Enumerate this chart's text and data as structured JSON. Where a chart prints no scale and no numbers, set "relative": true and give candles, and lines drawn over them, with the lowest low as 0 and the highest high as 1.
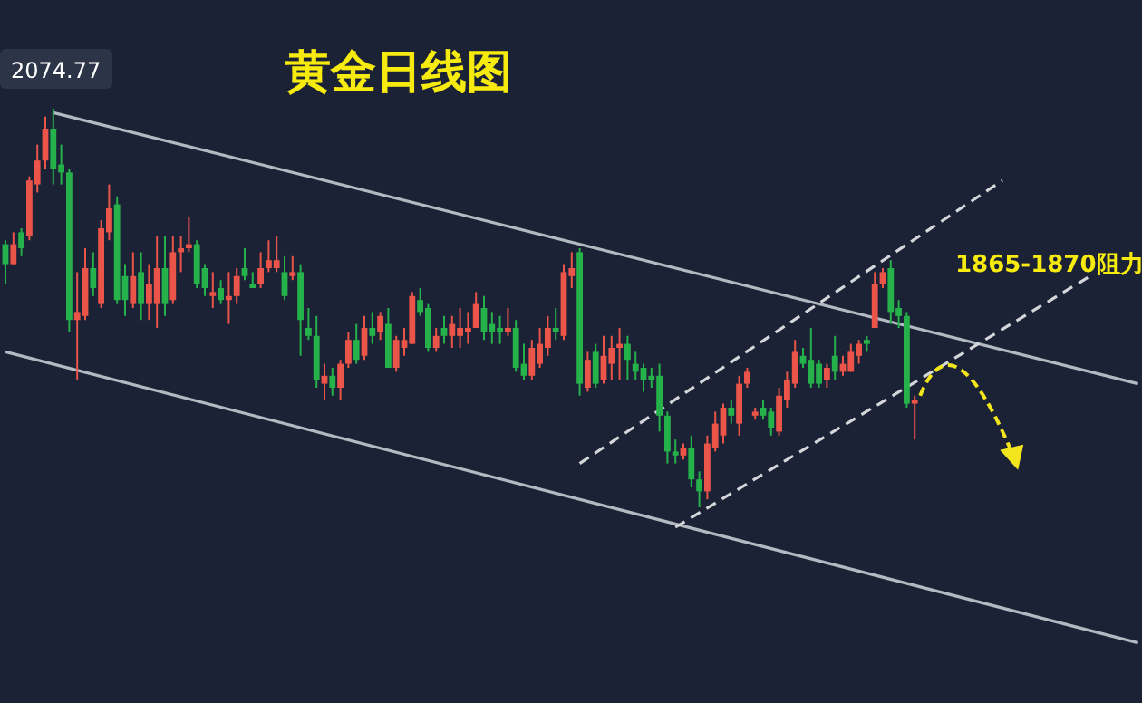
{
  "chart_data": {
    "type": "candlestick",
    "title": "黄金日线图",
    "relative": true,
    "categories": [
      null,
      null,
      null,
      null,
      null,
      null,
      null,
      null,
      null,
      null,
      null,
      null,
      null,
      null,
      null,
      null,
      null,
      null,
      null,
      null,
      null,
      null,
      null,
      null,
      null,
      null,
      null,
      null,
      null,
      null,
      null,
      null,
      null,
      null,
      null,
      null,
      null,
      null,
      null,
      null,
      null,
      null,
      null,
      null,
      null,
      null,
      null,
      null,
      null,
      null,
      null,
      null,
      null,
      null,
      null,
      null,
      null,
      null,
      null,
      null,
      null,
      null,
      null,
      null,
      null,
      null,
      null,
      null,
      null,
      null,
      null,
      null,
      null,
      null,
      null,
      null,
      null,
      null,
      null,
      null,
      null,
      null,
      null,
      null,
      null,
      null,
      null,
      null,
      null,
      null,
      null,
      null,
      null,
      null,
      null,
      null,
      null,
      null,
      null,
      null,
      null,
      null,
      null,
      null,
      null,
      null,
      null,
      null,
      null,
      null,
      null,
      null,
      null,
      null,
      null,
      null,
      null,
      null,
      null,
      null,
      null,
      null,
      null,
      null,
      null,
      null,
      null,
      null,
      null,
      null,
      null,
      null,
      null,
      null,
      null,
      null,
      null,
      null,
      null,
      null,
      null,
      null,
      null
    ],
    "ohlc": [
      [
        0.66,
        0.67,
        0.56,
        0.61
      ],
      [
        0.61,
        0.69,
        0.61,
        0.66
      ],
      [
        0.69,
        0.7,
        0.63,
        0.65
      ],
      [
        0.68,
        0.83,
        0.67,
        0.82
      ],
      [
        0.81,
        0.91,
        0.79,
        0.87
      ],
      [
        0.87,
        0.98,
        0.85,
        0.95
      ],
      [
        0.95,
        1.0,
        0.81,
        0.85
      ],
      [
        0.86,
        0.91,
        0.81,
        0.84
      ],
      [
        0.84,
        0.85,
        0.44,
        0.47
      ],
      [
        0.47,
        0.59,
        0.32,
        0.49
      ],
      [
        0.48,
        0.65,
        0.47,
        0.6
      ],
      [
        0.6,
        0.64,
        0.53,
        0.55
      ],
      [
        0.51,
        0.72,
        0.5,
        0.7
      ],
      [
        0.69,
        0.81,
        0.67,
        0.75
      ],
      [
        0.76,
        0.78,
        0.51,
        0.52
      ],
      [
        0.58,
        0.61,
        0.48,
        0.52
      ],
      [
        0.51,
        0.64,
        0.5,
        0.58
      ],
      [
        0.59,
        0.64,
        0.47,
        0.51
      ],
      [
        0.51,
        0.61,
        0.47,
        0.56
      ],
      [
        0.51,
        0.68,
        0.45,
        0.6
      ],
      [
        0.6,
        0.68,
        0.48,
        0.51
      ],
      [
        0.52,
        0.68,
        0.51,
        0.64
      ],
      [
        0.64,
        0.68,
        0.59,
        0.65
      ],
      [
        0.65,
        0.73,
        0.64,
        0.66
      ],
      [
        0.66,
        0.67,
        0.55,
        0.56
      ],
      [
        0.6,
        0.61,
        0.53,
        0.55
      ],
      [
        0.53,
        0.59,
        0.5,
        0.54
      ],
      [
        0.55,
        0.57,
        0.51,
        0.52
      ],
      [
        0.52,
        0.59,
        0.46,
        0.53
      ],
      [
        0.53,
        0.6,
        0.51,
        0.58
      ],
      [
        0.6,
        0.65,
        0.57,
        0.58
      ],
      [
        0.56,
        0.59,
        0.55,
        0.55
      ],
      [
        0.56,
        0.64,
        0.55,
        0.6
      ],
      [
        0.6,
        0.67,
        0.59,
        0.62
      ],
      [
        0.6,
        0.68,
        0.59,
        0.62
      ],
      [
        0.59,
        0.63,
        0.52,
        0.53
      ],
      [
        0.58,
        0.63,
        0.57,
        0.59
      ],
      [
        0.59,
        0.61,
        0.38,
        0.47
      ],
      [
        0.45,
        0.5,
        0.42,
        0.43
      ],
      [
        0.43,
        0.48,
        0.3,
        0.32
      ],
      [
        0.31,
        0.36,
        0.27,
        0.33
      ],
      [
        0.33,
        0.35,
        0.28,
        0.3
      ],
      [
        0.3,
        0.37,
        0.27,
        0.36
      ],
      [
        0.36,
        0.44,
        0.35,
        0.42
      ],
      [
        0.42,
        0.46,
        0.36,
        0.37
      ],
      [
        0.38,
        0.48,
        0.37,
        0.45
      ],
      [
        0.45,
        0.49,
        0.41,
        0.43
      ],
      [
        0.44,
        0.49,
        0.42,
        0.48
      ],
      [
        0.46,
        0.5,
        0.35,
        0.35
      ],
      [
        0.35,
        0.43,
        0.34,
        0.42
      ],
      [
        0.4,
        0.45,
        0.38,
        0.42
      ],
      [
        0.41,
        0.54,
        0.41,
        0.53
      ],
      [
        0.52,
        0.55,
        0.48,
        0.49
      ],
      [
        0.5,
        0.51,
        0.39,
        0.4
      ],
      [
        0.4,
        0.45,
        0.39,
        0.43
      ],
      [
        0.45,
        0.48,
        0.41,
        0.43
      ],
      [
        0.43,
        0.48,
        0.4,
        0.46
      ],
      [
        0.43,
        0.5,
        0.4,
        0.45
      ],
      [
        0.44,
        0.49,
        0.41,
        0.45
      ],
      [
        0.45,
        0.54,
        0.45,
        0.51
      ],
      [
        0.5,
        0.53,
        0.42,
        0.44
      ],
      [
        0.46,
        0.49,
        0.41,
        0.44
      ],
      [
        0.45,
        0.48,
        0.41,
        0.44
      ],
      [
        0.44,
        0.5,
        0.43,
        0.45
      ],
      [
        0.45,
        0.47,
        0.34,
        0.35
      ],
      [
        0.36,
        0.41,
        0.32,
        0.33
      ],
      [
        0.33,
        0.42,
        0.32,
        0.4
      ],
      [
        0.36,
        0.45,
        0.35,
        0.41
      ],
      [
        0.4,
        0.48,
        0.38,
        0.45
      ],
      [
        0.45,
        0.5,
        0.42,
        0.44
      ],
      [
        0.43,
        0.61,
        0.42,
        0.59
      ],
      [
        0.58,
        0.64,
        0.55,
        0.6
      ],
      [
        0.64,
        0.65,
        0.28,
        0.31
      ],
      [
        0.3,
        0.39,
        0.29,
        0.37
      ],
      [
        0.39,
        0.41,
        0.3,
        0.31
      ],
      [
        0.32,
        0.43,
        0.31,
        0.38
      ],
      [
        0.36,
        0.43,
        0.32,
        0.4
      ],
      [
        0.4,
        0.45,
        0.32,
        0.41
      ],
      [
        0.41,
        0.43,
        0.32,
        0.37
      ],
      [
        0.36,
        0.39,
        0.32,
        0.34
      ],
      [
        0.35,
        0.36,
        0.29,
        0.32
      ],
      [
        0.33,
        0.35,
        0.3,
        0.32
      ],
      [
        0.33,
        0.36,
        0.19,
        0.23
      ],
      [
        0.23,
        0.24,
        0.11,
        0.14
      ],
      [
        0.14,
        0.17,
        0.11,
        0.13
      ],
      [
        0.13,
        0.16,
        0.12,
        0.15
      ],
      [
        0.15,
        0.18,
        0.05,
        0.07
      ],
      [
        0.07,
        0.09,
        0,
        0.04
      ],
      [
        0.04,
        0.18,
        0.02,
        0.16
      ],
      [
        0.15,
        0.24,
        0.14,
        0.21
      ],
      [
        0.18,
        0.26,
        0.16,
        0.25
      ],
      [
        0.25,
        0.27,
        0.21,
        0.23
      ],
      [
        0.21,
        0.33,
        0.18,
        0.31
      ],
      [
        0.31,
        0.35,
        0.3,
        0.34
      ],
      [
        0.23,
        0.25,
        0.22,
        0.24
      ],
      [
        0.25,
        0.27,
        0.22,
        0.23
      ],
      [
        0.24,
        0.25,
        0.18,
        0.2
      ],
      [
        0.19,
        0.3,
        0.18,
        0.28
      ],
      [
        0.27,
        0.34,
        0.25,
        0.32
      ],
      [
        0.31,
        0.42,
        0.3,
        0.39
      ],
      [
        0.38,
        0.4,
        0.35,
        0.36
      ],
      [
        0.37,
        0.45,
        0.3,
        0.31
      ],
      [
        0.36,
        0.37,
        0.3,
        0.31
      ],
      [
        0.32,
        0.36,
        0.3,
        0.35
      ],
      [
        0.38,
        0.43,
        0.32,
        0.34
      ],
      [
        0.34,
        0.38,
        0.33,
        0.36
      ],
      [
        0.34,
        0.41,
        0.34,
        0.39
      ],
      [
        0.38,
        0.42,
        0.36,
        0.41
      ],
      [
        0.42,
        0.43,
        0.39,
        0.41
      ],
      [
        0.45,
        0.59,
        0.45,
        0.56
      ],
      [
        0.56,
        0.6,
        0.55,
        0.59
      ],
      [
        0.6,
        0.62,
        0.46,
        0.49
      ],
      [
        0.5,
        0.52,
        0.45,
        0.48
      ],
      [
        0.48,
        0.49,
        0.25,
        0.26
      ],
      [
        0.26,
        0.28,
        0.17,
        0.27
      ],
      null,
      null,
      null,
      null,
      null,
      null,
      null,
      null,
      null,
      null,
      null,
      null,
      null,
      null,
      null,
      null,
      null,
      null,
      null,
      null,
      null,
      null,
      null,
      null,
      null,
      null,
      null,
      null
    ],
    "colors": [
      "#26b24a",
      "#eb5449",
      "#26b24a",
      "#eb5449",
      "#eb5449",
      "#eb5449",
      "#26b24a",
      "#26b24a",
      "#26b24a",
      "#eb5449",
      "#eb5449",
      "#26b24a",
      "#eb5449",
      "#eb5449",
      "#26b24a",
      "#26b24a",
      "#eb5449",
      "#26b24a",
      "#eb5449",
      "#eb5449",
      "#26b24a",
      "#eb5449",
      "#eb5449",
      "#eb5449",
      "#26b24a",
      "#26b24a",
      "#eb5449",
      "#26b24a",
      "#eb5449",
      "#eb5449",
      "#26b24a",
      "#26b24a",
      "#eb5449",
      "#eb5449",
      "#eb5449",
      "#26b24a",
      "#eb5449",
      "#26b24a",
      "#26b24a",
      "#26b24a",
      "#eb5449",
      "#26b24a",
      "#eb5449",
      "#eb5449",
      "#26b24a",
      "#eb5449",
      "#26b24a",
      "#eb5449",
      "#26b24a",
      "#eb5449",
      "#eb5449",
      "#eb5449",
      "#26b24a",
      "#26b24a",
      "#eb5449",
      "#26b24a",
      "#eb5449",
      "#eb5449",
      "#eb5449",
      "#eb5449",
      "#26b24a",
      "#26b24a",
      "#26b24a",
      "#eb5449",
      "#26b24a",
      "#26b24a",
      "#eb5449",
      "#eb5449",
      "#eb5449",
      "#26b24a",
      "#eb5449",
      "#eb5449",
      "#26b24a",
      "#eb5449",
      "#26b24a",
      "#eb5449",
      "#eb5449",
      "#eb5449",
      "#26b24a",
      "#26b24a",
      "#26b24a",
      "#26b24a",
      "#26b24a",
      "#26b24a",
      "#26b24a",
      "#eb5449",
      "#26b24a",
      "#26b24a",
      "#eb5449",
      "#eb5449",
      "#eb5449",
      "#26b24a",
      "#eb5449",
      "#eb5449",
      "#eb5449",
      "#26b24a",
      "#26b24a",
      "#eb5449",
      "#eb5449",
      "#eb5449",
      "#26b24a",
      "#26b24a",
      "#26b24a",
      "#eb5449",
      "#26b24a",
      "#eb5449",
      "#eb5449",
      "#eb5449",
      "#26b24a",
      "#eb5449",
      "#eb5449",
      "#26b24a",
      "#26b24a",
      "#26b24a",
      "#eb5449",
      null,
      null,
      null,
      null,
      null,
      null,
      null,
      null,
      null,
      null,
      null,
      null,
      null,
      null,
      null,
      null,
      null,
      null,
      null,
      null,
      null,
      null,
      null,
      null,
      null,
      null,
      null,
      null
    ],
    "series": [
      {
        "type": "line",
        "color": "#b4b8c0",
        "line_style": "solid",
        "values": [
          null,
          null,
          null,
          null,
          null,
          null,
          0.99,
          null,
          null,
          null,
          null,
          null,
          null,
          null,
          null,
          null,
          null,
          null,
          null,
          null,
          null,
          null,
          null,
          null,
          null,
          null,
          null,
          null,
          null,
          null,
          null,
          null,
          null,
          null,
          null,
          null,
          null,
          null,
          null,
          null,
          null,
          null,
          null,
          null,
          null,
          null,
          null,
          null,
          null,
          null,
          null,
          null,
          null,
          null,
          null,
          null,
          null,
          null,
          null,
          null,
          null,
          null,
          null,
          null,
          null,
          null,
          null,
          null,
          null,
          null,
          null,
          null,
          null,
          null,
          null,
          null,
          null,
          null,
          null,
          null,
          null,
          null,
          null,
          null,
          null,
          null,
          null,
          null,
          null,
          null,
          null,
          null,
          null,
          null,
          null,
          null,
          null,
          null,
          null,
          null,
          null,
          null,
          null,
          null,
          null,
          null,
          null,
          null,
          null,
          null,
          null,
          null,
          null,
          null,
          null,
          null,
          null,
          null,
          null,
          null,
          null,
          null,
          null,
          null,
          null,
          null,
          null,
          null,
          null,
          null,
          null,
          null,
          null,
          null,
          null,
          null,
          null,
          null,
          null,
          null,
          null,
          null,
          0.31
        ]
      },
      {
        "type": "line",
        "color": "#b4b8c0",
        "line_style": "solid",
        "values": [
          0.39,
          null,
          null,
          null,
          null,
          null,
          null,
          null,
          null,
          null,
          null,
          null,
          null,
          null,
          null,
          null,
          null,
          null,
          null,
          null,
          null,
          null,
          null,
          null,
          null,
          null,
          null,
          null,
          null,
          null,
          null,
          null,
          null,
          null,
          null,
          null,
          null,
          null,
          null,
          null,
          null,
          null,
          null,
          null,
          null,
          null,
          null,
          null,
          null,
          null,
          null,
          null,
          null,
          null,
          null,
          null,
          null,
          null,
          null,
          null,
          null,
          null,
          null,
          null,
          null,
          null,
          null,
          null,
          null,
          null,
          null,
          null,
          null,
          null,
          null,
          null,
          null,
          null,
          null,
          null,
          null,
          null,
          null,
          null,
          null,
          null,
          null,
          null,
          null,
          null,
          null,
          null,
          null,
          null,
          null,
          null,
          null,
          null,
          null,
          null,
          null,
          null,
          null,
          null,
          null,
          null,
          null,
          null,
          null,
          null,
          null,
          null,
          null,
          null,
          null,
          null,
          null,
          null,
          null,
          null,
          null,
          null,
          null,
          null,
          null,
          null,
          null,
          null,
          null,
          null,
          null,
          null,
          null,
          null,
          null,
          null,
          null,
          null,
          null,
          null,
          null,
          null,
          -0.34
        ]
      },
      {
        "type": "line",
        "color": "#d4d6da",
        "line_style": "dashed",
        "values": [
          null,
          null,
          null,
          null,
          null,
          null,
          null,
          null,
          null,
          null,
          null,
          null,
          null,
          null,
          null,
          null,
          null,
          null,
          null,
          null,
          null,
          null,
          null,
          null,
          null,
          null,
          null,
          null,
          null,
          null,
          null,
          null,
          null,
          null,
          null,
          null,
          null,
          null,
          null,
          null,
          null,
          null,
          null,
          null,
          null,
          null,
          null,
          null,
          null,
          null,
          null,
          null,
          null,
          null,
          null,
          null,
          null,
          null,
          null,
          null,
          null,
          null,
          null,
          null,
          null,
          null,
          null,
          null,
          null,
          null,
          null,
          null,
          0.11,
          null,
          null,
          null,
          null,
          null,
          null,
          null,
          null,
          null,
          null,
          null,
          null,
          null,
          null,
          null,
          null,
          null,
          null,
          null,
          null,
          null,
          null,
          null,
          null,
          null,
          null,
          null,
          null,
          null,
          null,
          null,
          null,
          null,
          null,
          null,
          null,
          null,
          null,
          null,
          null,
          null,
          null,
          null,
          null,
          null,
          null,
          null,
          null,
          null,
          null,
          null,
          null,
          0.82,
          null,
          null,
          null,
          null,
          null,
          null,
          null,
          null,
          null,
          null,
          null,
          null,
          null,
          null,
          null,
          null,
          null
        ]
      },
      {
        "type": "line",
        "color": "#d4d6da",
        "line_style": "dashed",
        "values": [
          null,
          null,
          null,
          null,
          null,
          null,
          null,
          null,
          null,
          null,
          null,
          null,
          null,
          null,
          null,
          null,
          null,
          null,
          null,
          null,
          null,
          null,
          null,
          null,
          null,
          null,
          null,
          null,
          null,
          null,
          null,
          null,
          null,
          null,
          null,
          null,
          null,
          null,
          null,
          null,
          null,
          null,
          null,
          null,
          null,
          null,
          null,
          null,
          null,
          null,
          null,
          null,
          null,
          null,
          null,
          null,
          null,
          null,
          null,
          null,
          null,
          null,
          null,
          null,
          null,
          null,
          null,
          null,
          null,
          null,
          null,
          null,
          null,
          null,
          null,
          null,
          null,
          null,
          null,
          null,
          null,
          null,
          null,
          null,
          -0.05,
          null,
          null,
          null,
          null,
          null,
          null,
          null,
          null,
          null,
          null,
          null,
          null,
          null,
          null,
          null,
          null,
          null,
          null,
          null,
          null,
          null,
          null,
          null,
          null,
          null,
          null,
          null,
          null,
          null,
          null,
          null,
          null,
          null,
          null,
          null,
          null,
          null,
          null,
          null,
          null,
          null,
          null,
          null,
          null,
          null,
          null,
          null,
          null,
          null,
          null,
          null,
          0.58,
          null,
          null,
          null,
          null,
          null,
          null
        ]
      }
    ],
    "annotations": [
      {
        "text": "2074.77",
        "y": 1
      },
      "1865-1870阻力"
    ]
  }
}
